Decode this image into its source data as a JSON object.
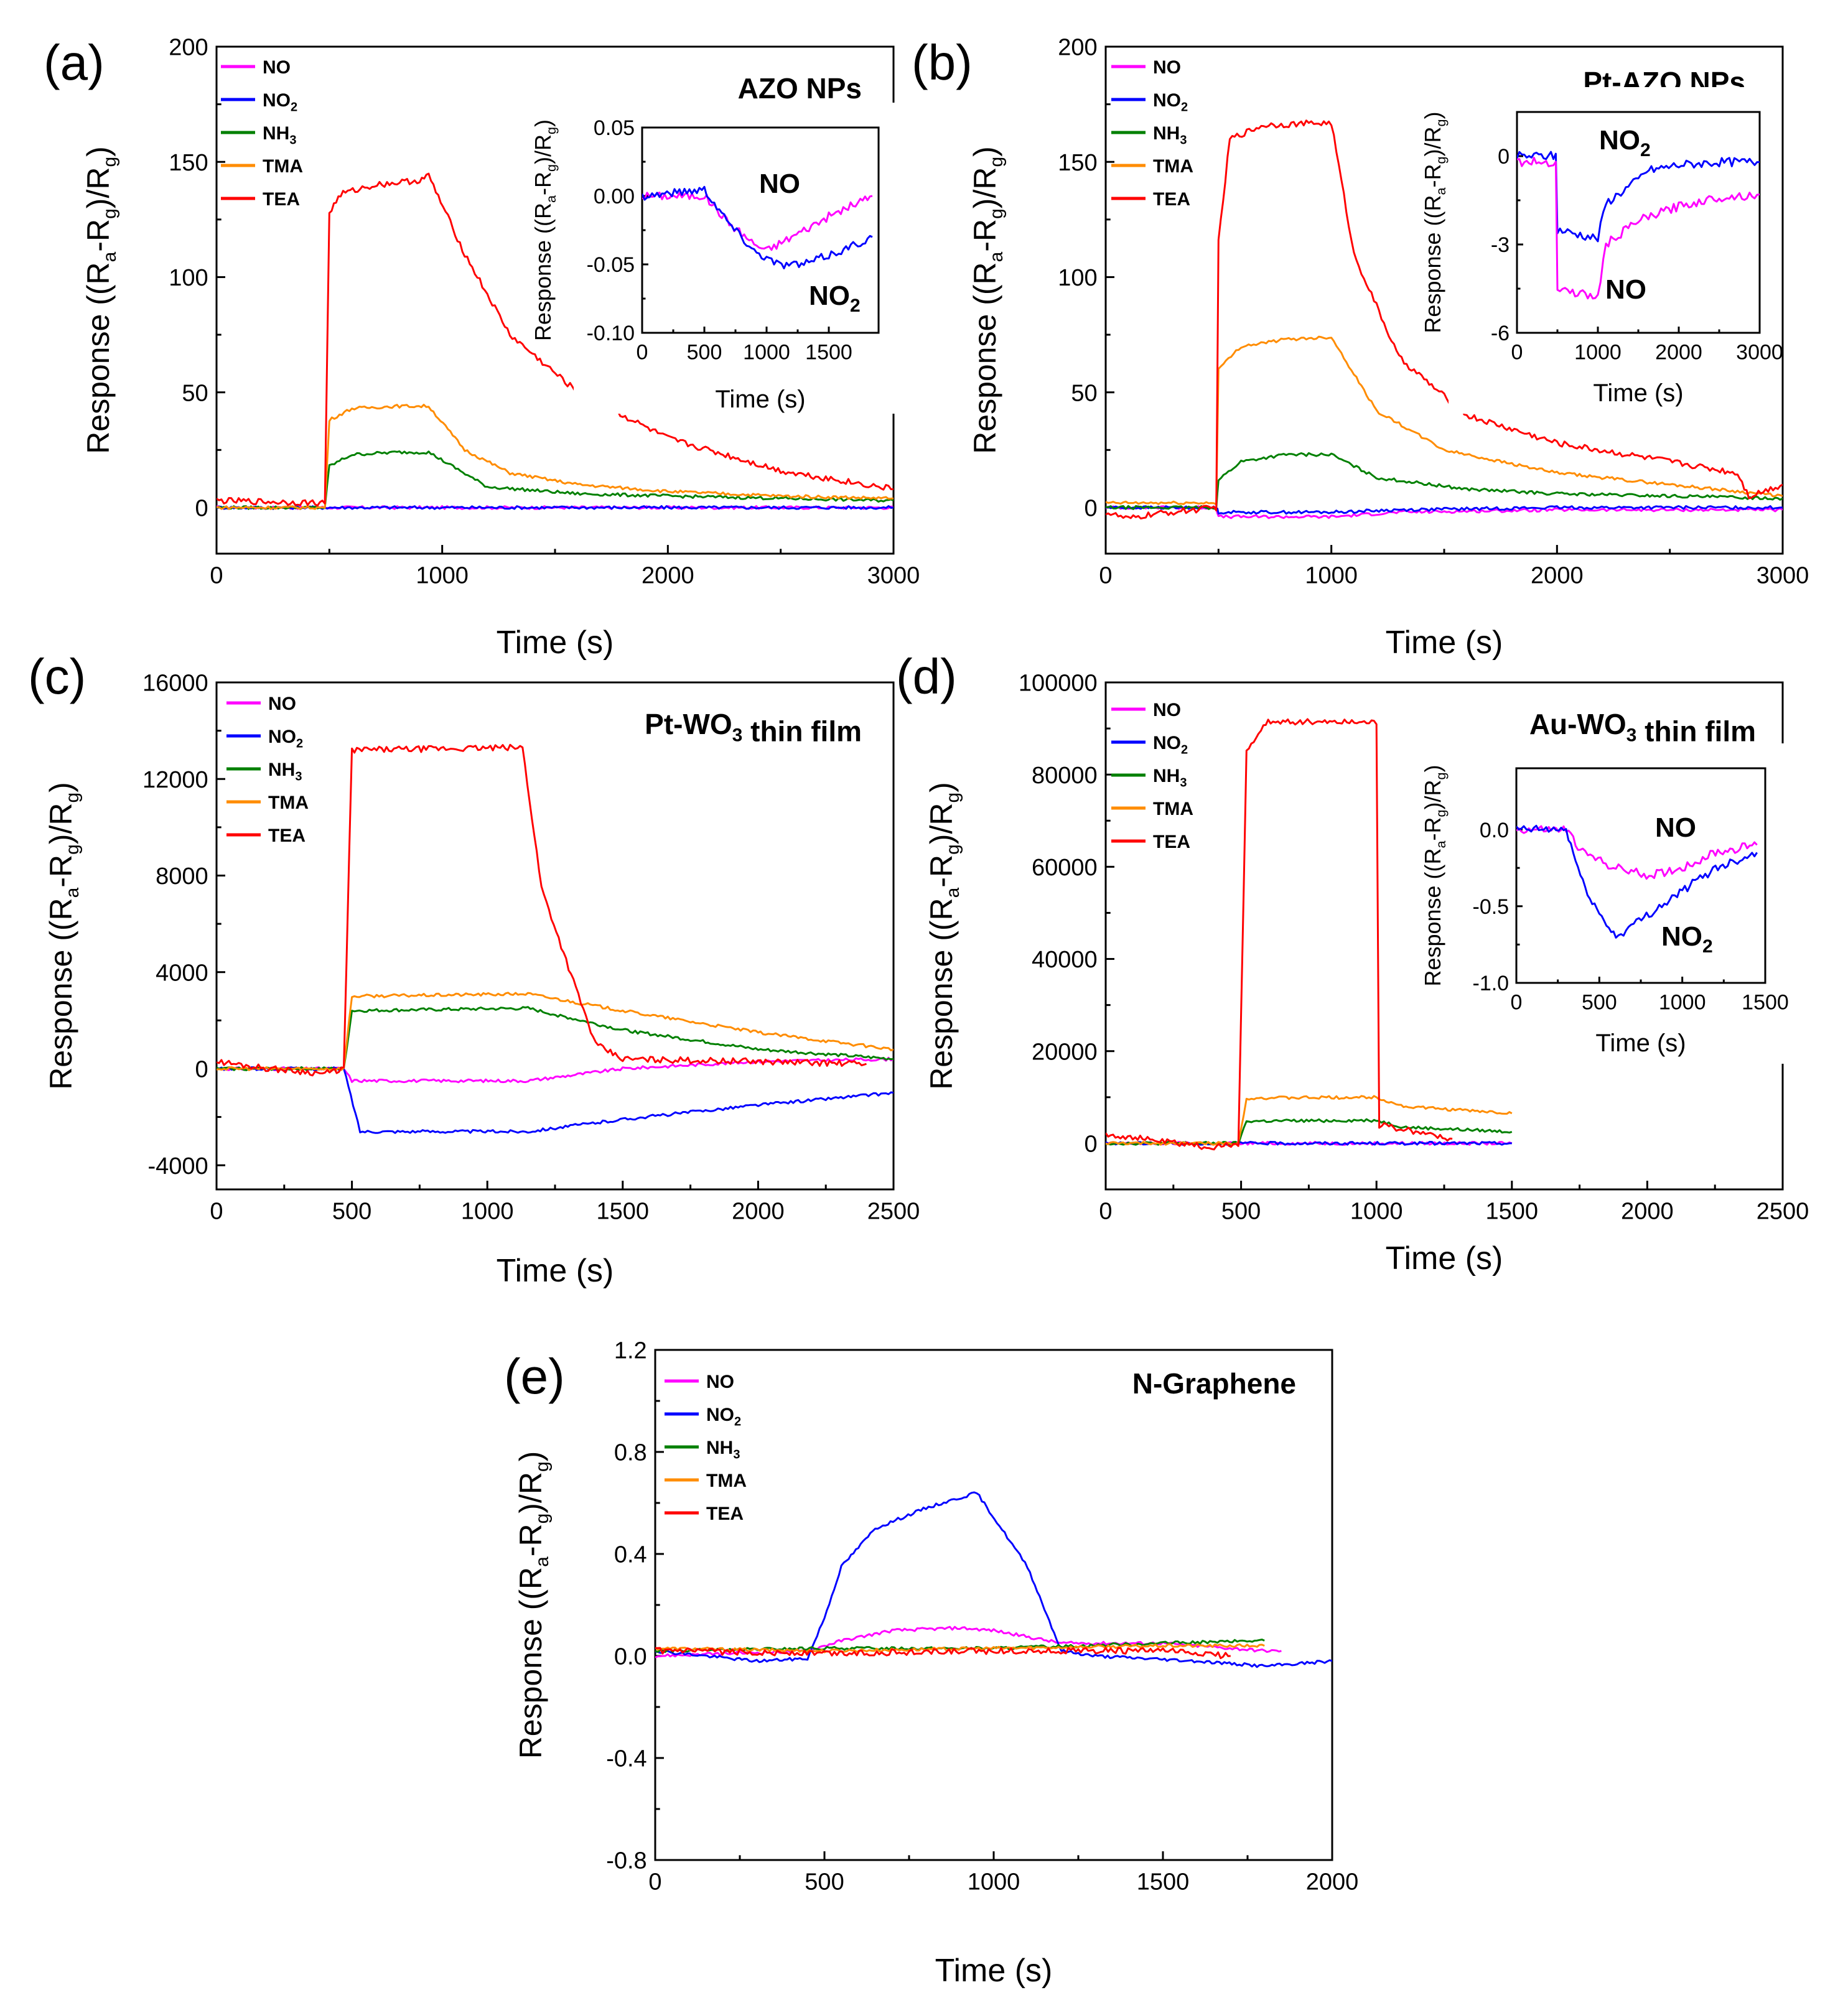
{
  "figure": {
    "panels": [
      {
        "id": "a",
        "label": "(a)",
        "title": "AZO NPs"
      },
      {
        "id": "b",
        "label": "(b)",
        "title": "Pt-AZO NPs"
      },
      {
        "id": "c",
        "label": "(c)",
        "title": "Pt-WO3 thin film"
      },
      {
        "id": "d",
        "label": "(d)",
        "title": "Au-WO3 thin film"
      },
      {
        "id": "e",
        "label": "(e)",
        "title": "N-Graphene"
      }
    ]
  },
  "legend": [
    {
      "name": "NO",
      "color": "#ff00ff"
    },
    {
      "name": "NO2",
      "color": "#0000ff"
    },
    {
      "name": "NH3",
      "color": "#008000"
    },
    {
      "name": "TMA",
      "color": "#ff8c00"
    },
    {
      "name": "TEA",
      "color": "#ff0000"
    }
  ],
  "chart_data": [
    {
      "panel": "a",
      "type": "line",
      "title": "AZO NPs",
      "xlabel": "Time (s)",
      "ylabel": "Response ((Ra-Rg)/Rg)",
      "xlim": [
        0,
        3000
      ],
      "ylim": [
        -20,
        200
      ],
      "xticks": [
        0,
        1000,
        2000,
        3000
      ],
      "yticks": [
        0,
        50,
        100,
        150,
        200
      ],
      "series": [
        {
          "name": "NO",
          "x": [
            0,
            480,
            3000
          ],
          "y": [
            0,
            0,
            0
          ]
        },
        {
          "name": "NO2",
          "x": [
            0,
            480,
            3000
          ],
          "y": [
            0,
            0,
            0
          ]
        },
        {
          "name": "NH3",
          "x": [
            0,
            480,
            500,
            600,
            800,
            940,
            1200,
            1600,
            2000,
            2500,
            3000
          ],
          "y": [
            0,
            0,
            18,
            23,
            24,
            24,
            9,
            6,
            5,
            4,
            3
          ]
        },
        {
          "name": "TMA",
          "x": [
            0,
            480,
            500,
            600,
            800,
            940,
            1100,
            1300,
            1600,
            2000,
            2500,
            3000
          ],
          "y": [
            0,
            0,
            38,
            43,
            44,
            44,
            25,
            15,
            10,
            7,
            5,
            4
          ]
        },
        {
          "name": "TEA",
          "x": [
            0,
            480,
            500,
            550,
            700,
            900,
            940,
            1100,
            1300,
            1600,
            2000,
            2500,
            3000
          ],
          "y": [
            3,
            2,
            128,
            136,
            140,
            142,
            144,
            110,
            75,
            50,
            30,
            16,
            8
          ]
        }
      ],
      "inset": {
        "xlabel": "Time (s)",
        "ylabel": "Response ((Ra-Rg)/Rg)",
        "xlim": [
          0,
          1900
        ],
        "ylim": [
          -0.1,
          0.05
        ],
        "xticks": [
          0,
          500,
          1000,
          1500
        ],
        "yticks": [
          0.05,
          0.0,
          -0.05,
          -0.1
        ],
        "annotations": [
          "NO",
          "NO2"
        ],
        "series": [
          {
            "name": "NO",
            "x": [
              0,
              500,
              700,
              900,
              1000,
              1200,
              1500,
              1850
            ],
            "y": [
              0.0,
              0.0,
              -0.02,
              -0.035,
              -0.04,
              -0.03,
              -0.015,
              0.0
            ]
          },
          {
            "name": "NO2",
            "x": [
              0,
              500,
              700,
              900,
              1100,
              1300,
              1600,
              1850
            ],
            "y": [
              0.0,
              0.005,
              -0.02,
              -0.04,
              -0.05,
              -0.05,
              -0.04,
              -0.03
            ]
          }
        ]
      }
    },
    {
      "panel": "b",
      "type": "line",
      "title": "Pt-AZO NPs",
      "xlabel": "Time (s)",
      "ylabel": "Response ((Ra-Rg)/Rg)",
      "xlim": [
        0,
        3000
      ],
      "ylim": [
        -20,
        200
      ],
      "xticks": [
        0,
        1000,
        2000,
        3000
      ],
      "yticks": [
        0,
        50,
        100,
        150,
        200
      ],
      "series": [
        {
          "name": "NO",
          "x": [
            0,
            490,
            500,
            1000,
            1300,
            2000,
            3000
          ],
          "y": [
            0,
            0,
            -4,
            -4,
            -2,
            -1,
            -1
          ]
        },
        {
          "name": "NO2",
          "x": [
            0,
            490,
            500,
            1000,
            1300,
            2000,
            3000
          ],
          "y": [
            0,
            0,
            -2,
            -2,
            -1,
            0,
            0
          ]
        },
        {
          "name": "NH3",
          "x": [
            0,
            490,
            500,
            600,
            800,
            1000,
            1200,
            1600,
            2000,
            2500,
            3000
          ],
          "y": [
            0,
            0,
            12,
            20,
            23,
            23,
            13,
            8,
            6,
            5,
            4
          ]
        },
        {
          "name": "TMA",
          "x": [
            0,
            490,
            500,
            600,
            800,
            1000,
            1200,
            1500,
            2000,
            2500,
            3000
          ],
          "y": [
            2,
            2,
            60,
            70,
            73,
            74,
            42,
            25,
            15,
            10,
            5
          ]
        },
        {
          "name": "TEA",
          "x": [
            0,
            100,
            200,
            490,
            500,
            550,
            700,
            1000,
            1100,
            1300,
            1600,
            2000,
            2500,
            2800,
            2850,
            3000
          ],
          "y": [
            -2,
            -5,
            -3,
            0,
            115,
            160,
            166,
            167,
            110,
            65,
            40,
            28,
            20,
            15,
            5,
            10
          ]
        }
      ],
      "inset": {
        "xlabel": "Time (s)",
        "ylabel": "Response ((Ra-Rg)/Rg)",
        "xlim": [
          0,
          3000
        ],
        "ylim": [
          -6,
          1.5
        ],
        "xticks": [
          0,
          1000,
          2000,
          3000
        ],
        "yticks": [
          0,
          -3,
          -6
        ],
        "annotations": [
          "NO2",
          "NO"
        ],
        "series": [
          {
            "name": "NO2",
            "x": [
              0,
              480,
              500,
              1000,
              1100,
              1500,
              1600,
              2000,
              2500,
              3000
            ],
            "y": [
              0,
              0,
              -2.5,
              -2.8,
              -1.6,
              -0.8,
              -0.5,
              -0.3,
              -0.2,
              -0.2
            ]
          },
          {
            "name": "NO",
            "x": [
              0,
              480,
              500,
              1000,
              1100,
              1500,
              2000,
              2500,
              3000
            ],
            "y": [
              -0.2,
              -0.2,
              -4.5,
              -4.8,
              -3.0,
              -2.2,
              -1.7,
              -1.4,
              -1.3
            ]
          }
        ]
      }
    },
    {
      "panel": "c",
      "type": "line",
      "title": "Pt-WO3 thin film",
      "xlabel": "Time (s)",
      "ylabel": "Response ((Ra-Rg)/Rg)",
      "xlim": [
        0,
        2500
      ],
      "ylim": [
        -5000,
        16000
      ],
      "xticks": [
        0,
        500,
        1000,
        1500,
        2000,
        2500
      ],
      "yticks": [
        -4000,
        0,
        4000,
        8000,
        12000,
        16000
      ],
      "series": [
        {
          "name": "NO",
          "x": [
            0,
            470,
            500,
            1150,
            1500,
            2000,
            2500
          ],
          "y": [
            0,
            0,
            -500,
            -500,
            0,
            300,
            400
          ]
        },
        {
          "name": "NO2",
          "x": [
            0,
            470,
            530,
            1150,
            1500,
            2000,
            2500
          ],
          "y": [
            0,
            0,
            -2600,
            -2600,
            -2100,
            -1500,
            -1000
          ]
        },
        {
          "name": "NH3",
          "x": [
            0,
            470,
            500,
            1150,
            1500,
            2000,
            2500
          ],
          "y": [
            0,
            0,
            2400,
            2500,
            1600,
            800,
            400
          ]
        },
        {
          "name": "TMA",
          "x": [
            0,
            470,
            500,
            1150,
            1500,
            2000,
            2500
          ],
          "y": [
            0,
            0,
            3000,
            3100,
            2400,
            1500,
            800
          ]
        },
        {
          "name": "TEA",
          "x": [
            0,
            200,
            400,
            470,
            500,
            1130,
            1200,
            1300,
            1400,
            1500,
            2000,
            2400
          ],
          "y": [
            300,
            0,
            -200,
            0,
            13200,
            13300,
            7500,
            4200,
            1000,
            400,
            300,
            200
          ]
        }
      ]
    },
    {
      "panel": "d",
      "type": "line",
      "title": "Au-WO3 thin film",
      "xlabel": "Time (s)",
      "ylabel": "Response ((Ra-Rg)/Rg)",
      "xlim": [
        0,
        2500
      ],
      "ylim": [
        -10000,
        100000
      ],
      "xticks": [
        0,
        500,
        1000,
        1500,
        2000,
        2500
      ],
      "yticks": [
        0,
        20000,
        40000,
        60000,
        80000,
        100000
      ],
      "series": [
        {
          "name": "NO",
          "x": [
            0,
            1500
          ],
          "y": [
            0,
            0
          ]
        },
        {
          "name": "NO2",
          "x": [
            0,
            1500
          ],
          "y": [
            0,
            0
          ]
        },
        {
          "name": "NH3",
          "x": [
            0,
            490,
            520,
            1000,
            1100,
            1500
          ],
          "y": [
            0,
            0,
            4800,
            5000,
            3500,
            2500
          ]
        },
        {
          "name": "TMA",
          "x": [
            0,
            490,
            520,
            1000,
            1100,
            1500
          ],
          "y": [
            0,
            0,
            9800,
            10000,
            8000,
            6500
          ]
        },
        {
          "name": "TEA",
          "x": [
            0,
            200,
            400,
            490,
            520,
            600,
            1000,
            1010,
            1100,
            1280
          ],
          "y": [
            2000,
            500,
            -1000,
            0,
            85000,
            91500,
            91500,
            4000,
            3000,
            1000
          ]
        }
      ],
      "inset": {
        "xlabel": "Time (s)",
        "ylabel": "Response ((Ra-Rg)/Rg)",
        "xlim": [
          0,
          1500
        ],
        "ylim": [
          -1.0,
          0.4
        ],
        "xticks": [
          0,
          500,
          1000,
          1500
        ],
        "yticks": [
          0.0,
          -0.5,
          -1.0
        ],
        "annotations": [
          "NO",
          "NO2"
        ],
        "series": [
          {
            "name": "NO",
            "x": [
              0,
              300,
              400,
              600,
              800,
              1000,
              1200,
              1450
            ],
            "y": [
              0,
              0,
              -0.15,
              -0.25,
              -0.3,
              -0.25,
              -0.15,
              -0.1
            ]
          },
          {
            "name": "NO2",
            "x": [
              0,
              300,
              400,
              500,
              600,
              800,
              1000,
              1200,
              1450
            ],
            "y": [
              0,
              0,
              -0.35,
              -0.55,
              -0.7,
              -0.55,
              -0.4,
              -0.25,
              -0.15
            ]
          }
        ]
      }
    },
    {
      "panel": "e",
      "type": "line",
      "title": "N-Graphene",
      "xlabel": "Time (s)",
      "ylabel": "Response ((Ra-Rg)/Rg)",
      "xlim": [
        0,
        2000
      ],
      "ylim": [
        -0.8,
        1.2
      ],
      "xticks": [
        0,
        500,
        1000,
        1500,
        2000
      ],
      "yticks": [
        -0.8,
        -0.4,
        0.0,
        0.4,
        0.8,
        1.2
      ],
      "series": [
        {
          "name": "NO",
          "x": [
            0,
            450,
            550,
            700,
            900,
            1000,
            1200,
            1500,
            1800,
            1850
          ],
          "y": [
            0.0,
            0.02,
            0.06,
            0.1,
            0.11,
            0.1,
            0.05,
            0.05,
            0.02,
            0.02
          ]
        },
        {
          "name": "NO2",
          "x": [
            0,
            300,
            450,
            500,
            550,
            650,
            800,
            950,
            1100,
            1200,
            1300,
            1600,
            1800,
            2000
          ],
          "y": [
            0.02,
            -0.02,
            -0.01,
            0.15,
            0.35,
            0.5,
            0.58,
            0.64,
            0.35,
            0.02,
            0.0,
            -0.02,
            -0.04,
            -0.02
          ]
        },
        {
          "name": "NH3",
          "x": [
            0,
            500,
            1000,
            1500,
            1800
          ],
          "y": [
            0.02,
            0.03,
            0.03,
            0.05,
            0.06
          ]
        },
        {
          "name": "TMA",
          "x": [
            0,
            500,
            1000,
            1500,
            1800
          ],
          "y": [
            0.03,
            0.02,
            0.03,
            0.04,
            0.04
          ]
        },
        {
          "name": "TEA",
          "x": [
            0,
            500,
            1000,
            1500,
            1700
          ],
          "y": [
            0.02,
            0.01,
            0.02,
            0.02,
            0.0
          ]
        }
      ]
    }
  ]
}
